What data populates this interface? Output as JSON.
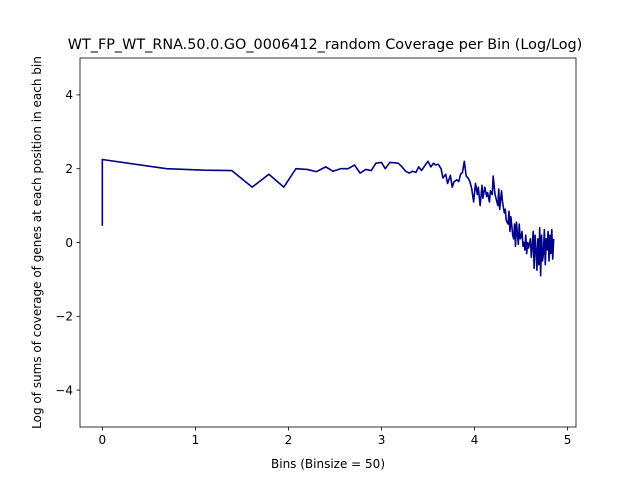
{
  "chart_data": {
    "type": "line",
    "title": "WT_FP_WT_RNA.50.0.GO_0006412_random Coverage per Bin (Log/Log)",
    "xlabel": "Bins (Binsize = 50)",
    "ylabel": "Log of sums of coverage of genes at each position in each bin",
    "xlim": [
      -0.24,
      5.09
    ],
    "ylim": [
      -5,
      5
    ],
    "xticks": [
      0,
      1,
      2,
      3,
      4,
      5
    ],
    "yticks": [
      -4,
      -2,
      0,
      2,
      4
    ],
    "xtick_labels": [
      "0",
      "1",
      "2",
      "3",
      "4",
      "5"
    ],
    "ytick_labels": [
      "−4",
      "−2",
      "0",
      "2",
      "4"
    ],
    "grid": false,
    "line_color": "#00008b",
    "series": [
      {
        "x": [
          0,
          0,
          0.69,
          1.1,
          1.39,
          1.61,
          1.79,
          1.95,
          2.08,
          2.2,
          2.3,
          2.4,
          2.48,
          2.56,
          2.64,
          2.71,
          2.77,
          2.83,
          2.89,
          2.94,
          3.0,
          3.04,
          3.09,
          3.14,
          3.18,
          3.22,
          3.26,
          3.3,
          3.33,
          3.37,
          3.4,
          3.43,
          3.47,
          3.5,
          3.53,
          3.56,
          3.58,
          3.61,
          3.64,
          3.66,
          3.69,
          3.71,
          3.74,
          3.76,
          3.78,
          3.81,
          3.83,
          3.85,
          3.87,
          3.89,
          3.91,
          3.93,
          3.95,
          3.97,
          3.99,
          4.01,
          4.03,
          4.04,
          4.06,
          4.08,
          4.09,
          4.11,
          4.13,
          4.14,
          4.16,
          4.17,
          4.19,
          4.2,
          4.22,
          4.23,
          4.25,
          4.26,
          4.27,
          4.29,
          4.3,
          4.32,
          4.33,
          4.34,
          4.36,
          4.37,
          4.38,
          4.39,
          4.41,
          4.42,
          4.43,
          4.44,
          4.45,
          4.47,
          4.48,
          4.49,
          4.5,
          4.51,
          4.52,
          4.53,
          4.54,
          4.55,
          4.56,
          4.57,
          4.58,
          4.6,
          4.61,
          4.62,
          4.63,
          4.64,
          4.65,
          4.66,
          4.67,
          4.68,
          4.69,
          4.7,
          4.71,
          4.72,
          4.73,
          4.74,
          4.75,
          4.76,
          4.77,
          4.78,
          4.79,
          4.8,
          4.81,
          4.82,
          4.83,
          4.84,
          4.85
        ],
        "y": [
          0.45,
          2.25,
          2.0,
          1.96,
          1.95,
          1.5,
          1.85,
          1.5,
          2.0,
          1.98,
          1.92,
          2.05,
          1.93,
          2.0,
          2.0,
          2.1,
          1.88,
          1.98,
          1.95,
          2.15,
          2.17,
          2.0,
          2.17,
          2.16,
          2.15,
          2.05,
          1.93,
          1.88,
          1.93,
          1.9,
          2.05,
          1.95,
          2.1,
          2.2,
          2.05,
          2.15,
          2.1,
          2.12,
          2.0,
          1.75,
          1.85,
          1.6,
          1.82,
          1.5,
          1.65,
          1.7,
          1.65,
          1.85,
          1.9,
          2.2,
          1.8,
          1.75,
          1.65,
          1.45,
          1.1,
          1.6,
          1.3,
          1.5,
          1.0,
          1.55,
          1.2,
          1.5,
          1.25,
          1.35,
          1.1,
          1.4,
          1.3,
          1.8,
          1.3,
          1.2,
          1.0,
          1.45,
          0.9,
          1.4,
          1.1,
          0.8,
          0.9,
          0.6,
          0.5,
          0.85,
          0.3,
          0.7,
          0.2,
          0.1,
          0.5,
          -0.1,
          0.55,
          -0.05,
          0.5,
          0.1,
          0.15,
          0.3,
          -0.1,
          0.0,
          -0.2,
          0.2,
          -0.3,
          0.0,
          -0.15,
          0.1,
          -0.4,
          -0.1,
          0.3,
          -0.7,
          0.2,
          -0.2,
          -0.75,
          0.1,
          -0.6,
          0.4,
          -0.9,
          0.2,
          -0.5,
          -0.3,
          0.35,
          -0.6,
          0.1,
          -0.2,
          0.3,
          -0.5,
          0.2,
          -0.3,
          0.35,
          -0.45,
          0.1
        ]
      }
    ]
  }
}
